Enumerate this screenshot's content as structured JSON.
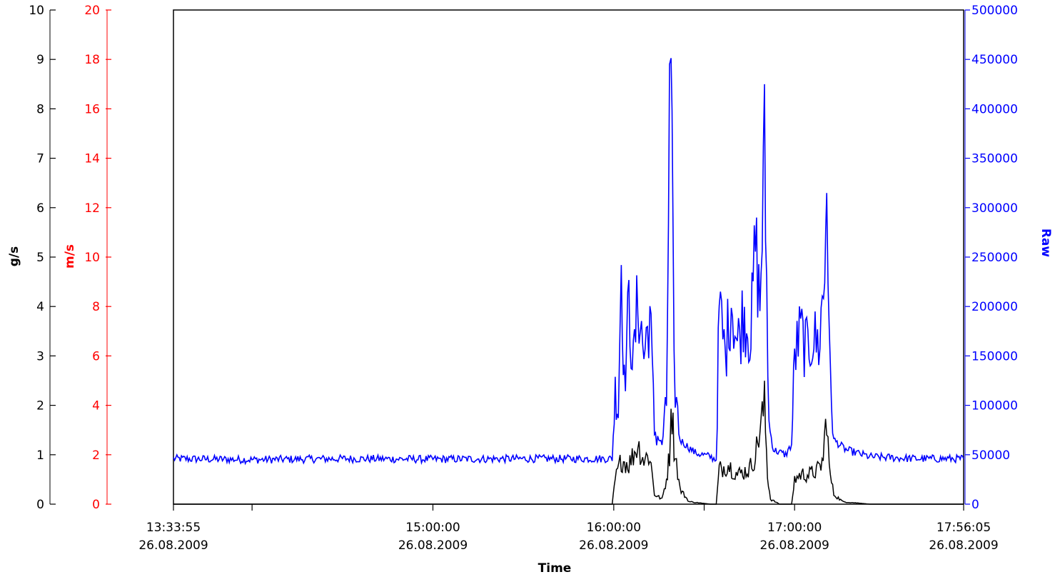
{
  "chart_data": {
    "type": "line",
    "title": "",
    "xlabel": "Time",
    "x_range": [
      "13:33:55 26.08.2009",
      "17:56:05 26.08.2009"
    ],
    "x_ticks": [
      {
        "time": "13:33:55",
        "date": "26.08.2009",
        "t": "13:33:55"
      },
      {
        "time": "",
        "date": "",
        "t": "14:00:00"
      },
      {
        "time": "15:00:00",
        "date": "26.08.2009",
        "t": "15:00:00"
      },
      {
        "time": "16:00:00",
        "date": "26.08.2009",
        "t": "16:00:00"
      },
      {
        "time": "",
        "date": "",
        "t": "16:30:00"
      },
      {
        "time": "17:00:00",
        "date": "26.08.2009",
        "t": "17:00:00"
      },
      {
        "time": "17:56:05",
        "date": "26.08.2009",
        "t": "17:56:05"
      }
    ],
    "axes": {
      "gs": {
        "label": "g/s",
        "ylim": [
          0,
          10
        ],
        "ticks": [
          0,
          1,
          2,
          3,
          4,
          5,
          6,
          7,
          8,
          9,
          10
        ],
        "color": "#000000"
      },
      "ms": {
        "label": "m/s",
        "ylim": [
          0,
          20
        ],
        "ticks": [
          0,
          2,
          4,
          6,
          8,
          10,
          12,
          14,
          16,
          18,
          20
        ],
        "color": "#ff0000"
      },
      "raw": {
        "label": "Raw",
        "ylim": [
          0,
          500000
        ],
        "ticks": [
          0,
          50000,
          100000,
          150000,
          200000,
          250000,
          300000,
          350000,
          400000,
          450000,
          500000
        ],
        "color": "#0000ff"
      }
    },
    "grid": false,
    "series": [
      {
        "axis": "raw",
        "color": "#0000ff",
        "baseline_noise": 4000,
        "values": [
          [
            "13:33:55",
            46000
          ],
          [
            "14:00:00",
            45000
          ],
          [
            "14:30:00",
            46000
          ],
          [
            "15:00:00",
            45500
          ],
          [
            "15:30:00",
            46000
          ],
          [
            "15:59:30",
            46000
          ],
          [
            "16:00:30",
            115000
          ],
          [
            "16:01:30",
            95000
          ],
          [
            "16:02:30",
            250000
          ],
          [
            "16:03:30",
            120000
          ],
          [
            "16:05:00",
            200000
          ],
          [
            "16:06:30",
            140000
          ],
          [
            "16:08:00",
            210000
          ],
          [
            "16:10:00",
            150000
          ],
          [
            "16:12:00",
            195000
          ],
          [
            "16:13:30",
            75000
          ],
          [
            "16:16:00",
            60000
          ],
          [
            "16:17:30",
            100000
          ],
          [
            "16:18:30",
            390000
          ],
          [
            "16:19:00",
            440000
          ],
          [
            "16:20:00",
            130000
          ],
          [
            "16:22:00",
            65000
          ],
          [
            "16:27:00",
            52000
          ],
          [
            "16:32:00",
            48000
          ],
          [
            "16:34:00",
            45000
          ],
          [
            "16:35:00",
            200000
          ],
          [
            "16:37:00",
            150000
          ],
          [
            "16:39:00",
            210000
          ],
          [
            "16:41:00",
            160000
          ],
          [
            "16:43:00",
            195000
          ],
          [
            "16:45:30",
            170000
          ],
          [
            "16:47:00",
            265000
          ],
          [
            "16:48:30",
            200000
          ],
          [
            "16:50:00",
            360000
          ],
          [
            "16:51:30",
            80000
          ],
          [
            "16:53:00",
            55000
          ],
          [
            "16:57:00",
            50000
          ],
          [
            "16:59:00",
            60000
          ],
          [
            "17:00:00",
            150000
          ],
          [
            "17:02:00",
            175000
          ],
          [
            "17:04:00",
            155000
          ],
          [
            "17:06:00",
            170000
          ],
          [
            "17:08:00",
            160000
          ],
          [
            "17:10:00",
            230000
          ],
          [
            "17:10:40",
            350000
          ],
          [
            "17:11:30",
            150000
          ],
          [
            "17:13:00",
            65000
          ],
          [
            "17:17:00",
            55000
          ],
          [
            "17:25:00",
            48000
          ],
          [
            "17:40:00",
            46000
          ],
          [
            "17:56:05",
            46000
          ]
        ]
      },
      {
        "axis": "gs",
        "color": "#000000",
        "values": [
          [
            "13:33:55",
            0
          ],
          [
            "15:59:30",
            0
          ],
          [
            "16:00:30",
            0.5
          ],
          [
            "16:02:30",
            0.9
          ],
          [
            "16:05:00",
            0.8
          ],
          [
            "16:08:00",
            1.2
          ],
          [
            "16:10:00",
            0.9
          ],
          [
            "16:12:00",
            1.0
          ],
          [
            "16:13:30",
            0.2
          ],
          [
            "16:16:00",
            0.1
          ],
          [
            "16:17:30",
            0.5
          ],
          [
            "16:18:30",
            1.0
          ],
          [
            "16:19:00",
            2.2
          ],
          [
            "16:20:00",
            1.2
          ],
          [
            "16:22:00",
            0.3
          ],
          [
            "16:25:00",
            0.05
          ],
          [
            "16:32:00",
            0.0
          ],
          [
            "16:34:00",
            0.0
          ],
          [
            "16:35:00",
            0.7
          ],
          [
            "16:38:00",
            0.8
          ],
          [
            "16:41:00",
            0.6
          ],
          [
            "16:45:00",
            0.7
          ],
          [
            "16:47:00",
            1.0
          ],
          [
            "16:50:00",
            2.0
          ],
          [
            "16:51:00",
            0.6
          ],
          [
            "16:52:00",
            0.1
          ],
          [
            "16:55:00",
            0.0
          ],
          [
            "16:59:00",
            0.0
          ],
          [
            "17:00:00",
            0.5
          ],
          [
            "17:02:00",
            0.6
          ],
          [
            "17:05:00",
            0.6
          ],
          [
            "17:08:00",
            0.7
          ],
          [
            "17:09:30",
            0.9
          ],
          [
            "17:10:40",
            1.9
          ],
          [
            "17:11:30",
            0.7
          ],
          [
            "17:13:00",
            0.2
          ],
          [
            "17:16:00",
            0.05
          ],
          [
            "17:25:00",
            0.0
          ],
          [
            "17:56:05",
            0.0
          ]
        ]
      }
    ]
  }
}
